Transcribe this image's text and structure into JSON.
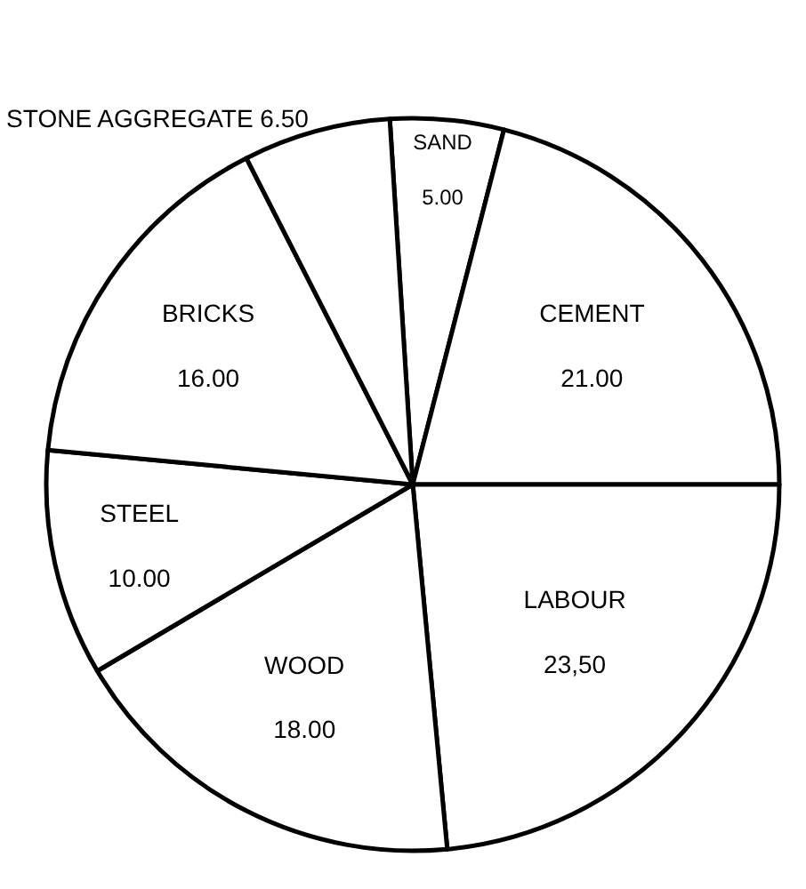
{
  "chart_data": {
    "type": "pie",
    "categories": [
      "SAND",
      "CEMENT",
      "LABOUR",
      "WOOD",
      "STEEL",
      "BRICKS",
      "STONE AGGREGATE"
    ],
    "values": [
      5.0,
      21.0,
      23.5,
      18.0,
      10.0,
      16.0,
      6.5
    ],
    "value_labels": [
      "5.00",
      "21.00",
      "23,50",
      "18.00",
      "10.00",
      "16.00",
      "6.50"
    ],
    "colors": [
      "#ffffff",
      "#ffffff",
      "#ffffff",
      "#ffffff",
      "#ffffff",
      "#ffffff",
      "#ffffff"
    ],
    "legend": false
  }
}
